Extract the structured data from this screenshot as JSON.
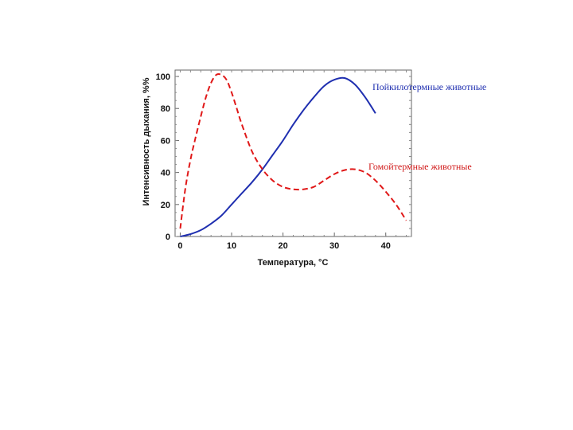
{
  "chart_data": {
    "type": "line",
    "xlabel": "Температура, °С",
    "ylabel": "Интенсивность дыхания, %%",
    "xlim": [
      -1,
      45
    ],
    "ylim": [
      0,
      104
    ],
    "x_ticks": [
      0,
      10,
      20,
      30,
      40
    ],
    "y_ticks": [
      0,
      20,
      40,
      60,
      80,
      100
    ],
    "grid": false,
    "series": [
      {
        "name": "Пойкилотермные животные",
        "color": "#1f2fb0",
        "style": "solid",
        "x": [
          0,
          2,
          4,
          6,
          8,
          10,
          12,
          14,
          16,
          18,
          20,
          22,
          24,
          26,
          28,
          30,
          32,
          34,
          36,
          38
        ],
        "y": [
          0,
          1.5,
          4,
          8,
          13,
          20,
          27,
          34,
          42,
          51,
          60,
          70,
          79,
          87,
          94,
          98,
          99,
          95,
          87,
          77
        ]
      },
      {
        "name": "Гомойтермные животные",
        "color": "#e01818",
        "style": "dashed",
        "x": [
          0,
          1,
          2,
          3,
          4,
          5,
          6,
          7,
          8,
          9,
          10,
          11,
          12,
          14,
          16,
          18,
          20,
          22,
          24,
          26,
          28,
          30,
          32,
          34,
          36,
          38,
          40,
          42,
          44
        ],
        "y": [
          5,
          30,
          48,
          62,
          75,
          87,
          96,
          101,
          101,
          98,
          90,
          80,
          70,
          53,
          42,
          35,
          31,
          29.5,
          29.5,
          31,
          35,
          39,
          41.5,
          42,
          40,
          35,
          28,
          20,
          10
        ]
      }
    ]
  }
}
